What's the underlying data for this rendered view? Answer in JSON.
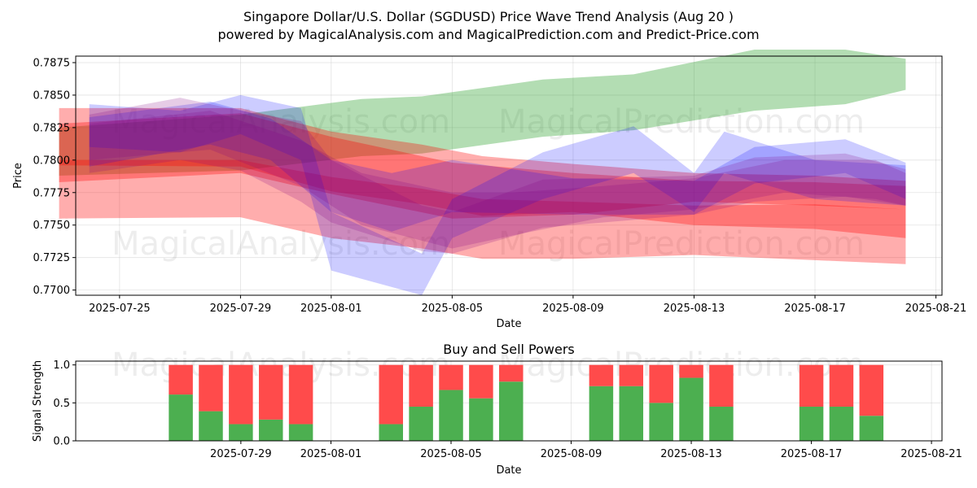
{
  "title_line1": "Singapore Dollar/U.S. Dollar (SGDUSD) Price Wave Trend Analysis (Aug 20 )",
  "title_line2": "powered by MagicalAnalysis.com and MagicalPrediction.com and Predict-Price.com",
  "watermarks": [
    "MagicalAnalysis.com",
    "MagicalPrediction.com"
  ],
  "colors": {
    "green_band": "#2ca02c",
    "red_band": "#ff0000",
    "blue_band": "#0000ff",
    "purple_band": "#800080",
    "buy": "#4caf50",
    "sell": "#ff4b4b"
  },
  "chart_data": [
    {
      "type": "area",
      "xlabel": "Date",
      "ylabel": "Price",
      "ylim": [
        0.7696,
        0.788
      ],
      "xlim": [
        "2025-07-23",
        "2025-08-21"
      ],
      "x_ticks": [
        "2025-07-25",
        "2025-07-29",
        "2025-08-01",
        "2025-08-05",
        "2025-08-09",
        "2025-08-13",
        "2025-08-17",
        "2025-08-21"
      ],
      "y_ticks": [
        0.77,
        0.7725,
        0.775,
        0.7775,
        0.78,
        0.7825,
        0.785,
        0.7875
      ],
      "y_tick_labels": [
        "0.7700",
        "0.7725",
        "0.7750",
        "0.7775",
        "0.7800",
        "0.7825",
        "0.7850",
        "0.7875"
      ],
      "grid": true,
      "series": [
        {
          "color": "green_band",
          "x": [
            "2025-07-23",
            "2025-07-29",
            "2025-08-02",
            "2025-08-04",
            "2025-08-08",
            "2025-08-11",
            "2025-08-15",
            "2025-08-18",
            "2025-08-20"
          ],
          "upper": [
            0.7825,
            0.7835,
            0.7847,
            0.7849,
            0.7862,
            0.7866,
            0.7885,
            0.7885,
            0.7878
          ],
          "lower": [
            0.7788,
            0.7792,
            0.7803,
            0.7805,
            0.7818,
            0.7823,
            0.7838,
            0.7843,
            0.7854
          ]
        },
        {
          "color": "red_band",
          "x": [
            "2025-07-23",
            "2025-07-29",
            "2025-08-01",
            "2025-08-04",
            "2025-08-06",
            "2025-08-09",
            "2025-08-13",
            "2025-08-17",
            "2025-08-20"
          ],
          "upper": [
            0.784,
            0.784,
            0.7822,
            0.7812,
            0.7803,
            0.7797,
            0.779,
            0.7788,
            0.7784
          ],
          "lower": [
            0.7755,
            0.7756,
            0.774,
            0.7732,
            0.7724,
            0.7724,
            0.7727,
            0.7723,
            0.772
          ]
        },
        {
          "color": "red_band",
          "x": [
            "2025-07-23",
            "2025-07-29",
            "2025-08-01",
            "2025-08-04",
            "2025-08-06",
            "2025-08-09",
            "2025-08-13",
            "2025-08-17",
            "2025-08-20"
          ],
          "upper": [
            0.78,
            0.78,
            0.7787,
            0.7778,
            0.777,
            0.7768,
            0.7765,
            0.7766,
            0.7762
          ],
          "lower": [
            0.7796,
            0.7795,
            0.7776,
            0.7766,
            0.7757,
            0.776,
            0.775,
            0.7747,
            0.774
          ]
        },
        {
          "color": "red_band",
          "x": [
            "2025-07-23",
            "2025-07-29",
            "2025-08-01",
            "2025-08-05",
            "2025-08-09",
            "2025-08-13",
            "2025-08-17",
            "2025-08-20"
          ],
          "upper": [
            0.7828,
            0.7836,
            0.7818,
            0.7798,
            0.779,
            0.7784,
            0.7783,
            0.778
          ],
          "lower": [
            0.7783,
            0.779,
            0.7774,
            0.7755,
            0.7758,
            0.7768,
            0.7765,
            0.7762
          ]
        },
        {
          "color": "blue_band",
          "x": [
            "2025-07-24",
            "2025-07-27",
            "2025-07-29",
            "2025-07-31",
            "2025-08-01",
            "2025-08-04",
            "2025-08-05",
            "2025-08-08",
            "2025-08-11",
            "2025-08-13",
            "2025-08-14",
            "2025-08-17",
            "2025-08-20"
          ],
          "upper": [
            0.7843,
            0.7838,
            0.785,
            0.784,
            0.776,
            0.7728,
            0.777,
            0.7806,
            0.7826,
            0.779,
            0.7822,
            0.78,
            0.7796
          ],
          "lower": [
            0.781,
            0.7806,
            0.782,
            0.78,
            0.7715,
            0.7696,
            0.774,
            0.777,
            0.779,
            0.776,
            0.779,
            0.777,
            0.7765
          ]
        },
        {
          "color": "blue_band",
          "x": [
            "2025-07-24",
            "2025-07-28",
            "2025-07-30",
            "2025-08-01",
            "2025-08-03",
            "2025-08-05",
            "2025-08-09",
            "2025-08-13",
            "2025-08-15",
            "2025-08-18",
            "2025-08-20"
          ],
          "upper": [
            0.7833,
            0.7845,
            0.7832,
            0.78,
            0.779,
            0.78,
            0.7786,
            0.7784,
            0.781,
            0.7816,
            0.7798
          ],
          "lower": [
            0.7795,
            0.7812,
            0.78,
            0.776,
            0.7745,
            0.776,
            0.7758,
            0.7758,
            0.7782,
            0.779,
            0.777
          ]
        },
        {
          "color": "purple_band",
          "x": [
            "2025-07-24",
            "2025-07-27",
            "2025-07-29",
            "2025-07-31",
            "2025-08-01",
            "2025-08-04",
            "2025-08-05",
            "2025-08-08",
            "2025-08-13",
            "2025-08-15",
            "2025-08-18",
            "2025-08-20"
          ],
          "upper": [
            0.7835,
            0.7848,
            0.7838,
            0.783,
            0.78,
            0.7765,
            0.776,
            0.7785,
            0.7788,
            0.7802,
            0.7805,
            0.7793
          ],
          "lower": [
            0.779,
            0.78,
            0.7792,
            0.7768,
            0.7752,
            0.773,
            0.7728,
            0.7748,
            0.7758,
            0.7768,
            0.7772,
            0.7765
          ]
        },
        {
          "color": "purple_band",
          "x": [
            "2025-07-24",
            "2025-07-28",
            "2025-07-31",
            "2025-08-02",
            "2025-08-05",
            "2025-08-07",
            "2025-08-10",
            "2025-08-13",
            "2025-08-16",
            "2025-08-19",
            "2025-08-20"
          ],
          "upper": [
            0.7828,
            0.7838,
            0.7815,
            0.779,
            0.7775,
            0.7775,
            0.778,
            0.7786,
            0.78,
            0.78,
            0.779
          ],
          "lower": [
            0.78,
            0.7808,
            0.778,
            0.775,
            0.7732,
            0.7742,
            0.7756,
            0.7762,
            0.7775,
            0.777,
            0.7765
          ]
        }
      ]
    },
    {
      "type": "bar",
      "title": "Buy and Sell Powers",
      "xlabel": "Date",
      "ylabel": "Signal Strength",
      "ylim": [
        0,
        1.05
      ],
      "xlim": [
        "2025-07-23",
        "2025-08-21"
      ],
      "x_ticks": [
        "2025-07-29",
        "2025-08-01",
        "2025-08-05",
        "2025-08-09",
        "2025-08-13",
        "2025-08-17",
        "2025-08-21"
      ],
      "y_ticks": [
        0.0,
        0.5,
        1.0
      ],
      "y_tick_labels": [
        "0.0",
        "0.5",
        "1.0"
      ],
      "grid": true,
      "dates": [
        "2025-07-27",
        "2025-07-28",
        "2025-07-29",
        "2025-07-30",
        "2025-07-31",
        "2025-08-03",
        "2025-08-04",
        "2025-08-05",
        "2025-08-06",
        "2025-08-07",
        "2025-08-10",
        "2025-08-11",
        "2025-08-12",
        "2025-08-13",
        "2025-08-14",
        "2025-08-17",
        "2025-08-18",
        "2025-08-19"
      ],
      "series": [
        {
          "color": "buy",
          "values": [
            0.61,
            0.39,
            0.22,
            0.28,
            0.22,
            0.22,
            0.45,
            0.67,
            0.56,
            0.78,
            0.72,
            0.72,
            0.5,
            0.83,
            0.45,
            0.45,
            0.45,
            0.33
          ]
        },
        {
          "color": "sell",
          "values": [
            0.39,
            0.61,
            0.78,
            0.72,
            0.78,
            0.78,
            0.55,
            0.33,
            0.44,
            0.22,
            0.28,
            0.28,
            0.5,
            0.17,
            0.55,
            0.55,
            0.55,
            0.67
          ]
        }
      ]
    }
  ]
}
